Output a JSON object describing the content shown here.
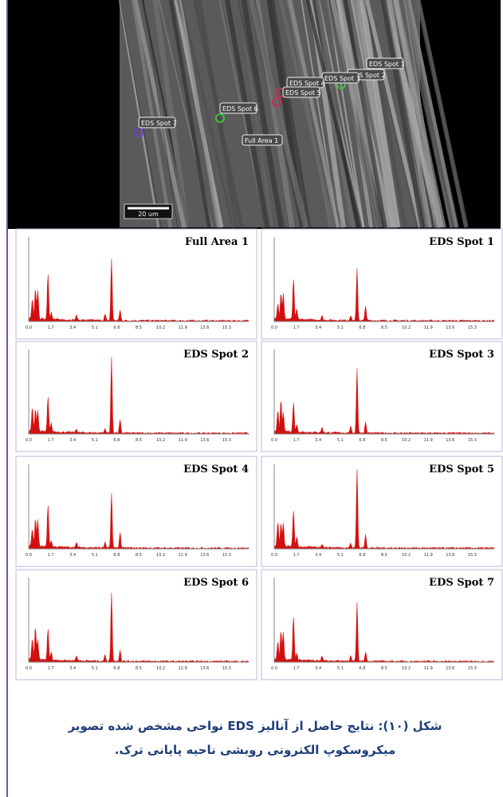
{
  "sem": {
    "labels": [
      "EDS Spot 1",
      "EDS Spot 2",
      "EDS Spot 3",
      "EDS Spot 4",
      "EDS Spot 5",
      "EDS Spot 6",
      "EDS Spot 7",
      "Full Area 1"
    ],
    "scale": "20 um"
  },
  "panels": [
    {
      "title": "Full Area 1"
    },
    {
      "title": "EDS Spot 1"
    },
    {
      "title": "EDS Spot 2"
    },
    {
      "title": "EDS Spot 3"
    },
    {
      "title": "EDS Spot 4"
    },
    {
      "title": "EDS Spot 5"
    },
    {
      "title": "EDS Spot 6"
    },
    {
      "title": "EDS Spot 7"
    }
  ],
  "x_ticks": [
    "0.0",
    "1.7",
    "3.4",
    "5.1",
    "6.8",
    "8.5",
    "10.2",
    "11.9",
    "13.6",
    "15.3"
  ],
  "caption": {
    "line1": "شکل (۱۰): نتایج حاصل از آنالیز EDS نواحی مشخص شده تصویر",
    "line2": "میکروسکوپ الکترونی روبشی ناحیه پایانی ترک."
  }
}
